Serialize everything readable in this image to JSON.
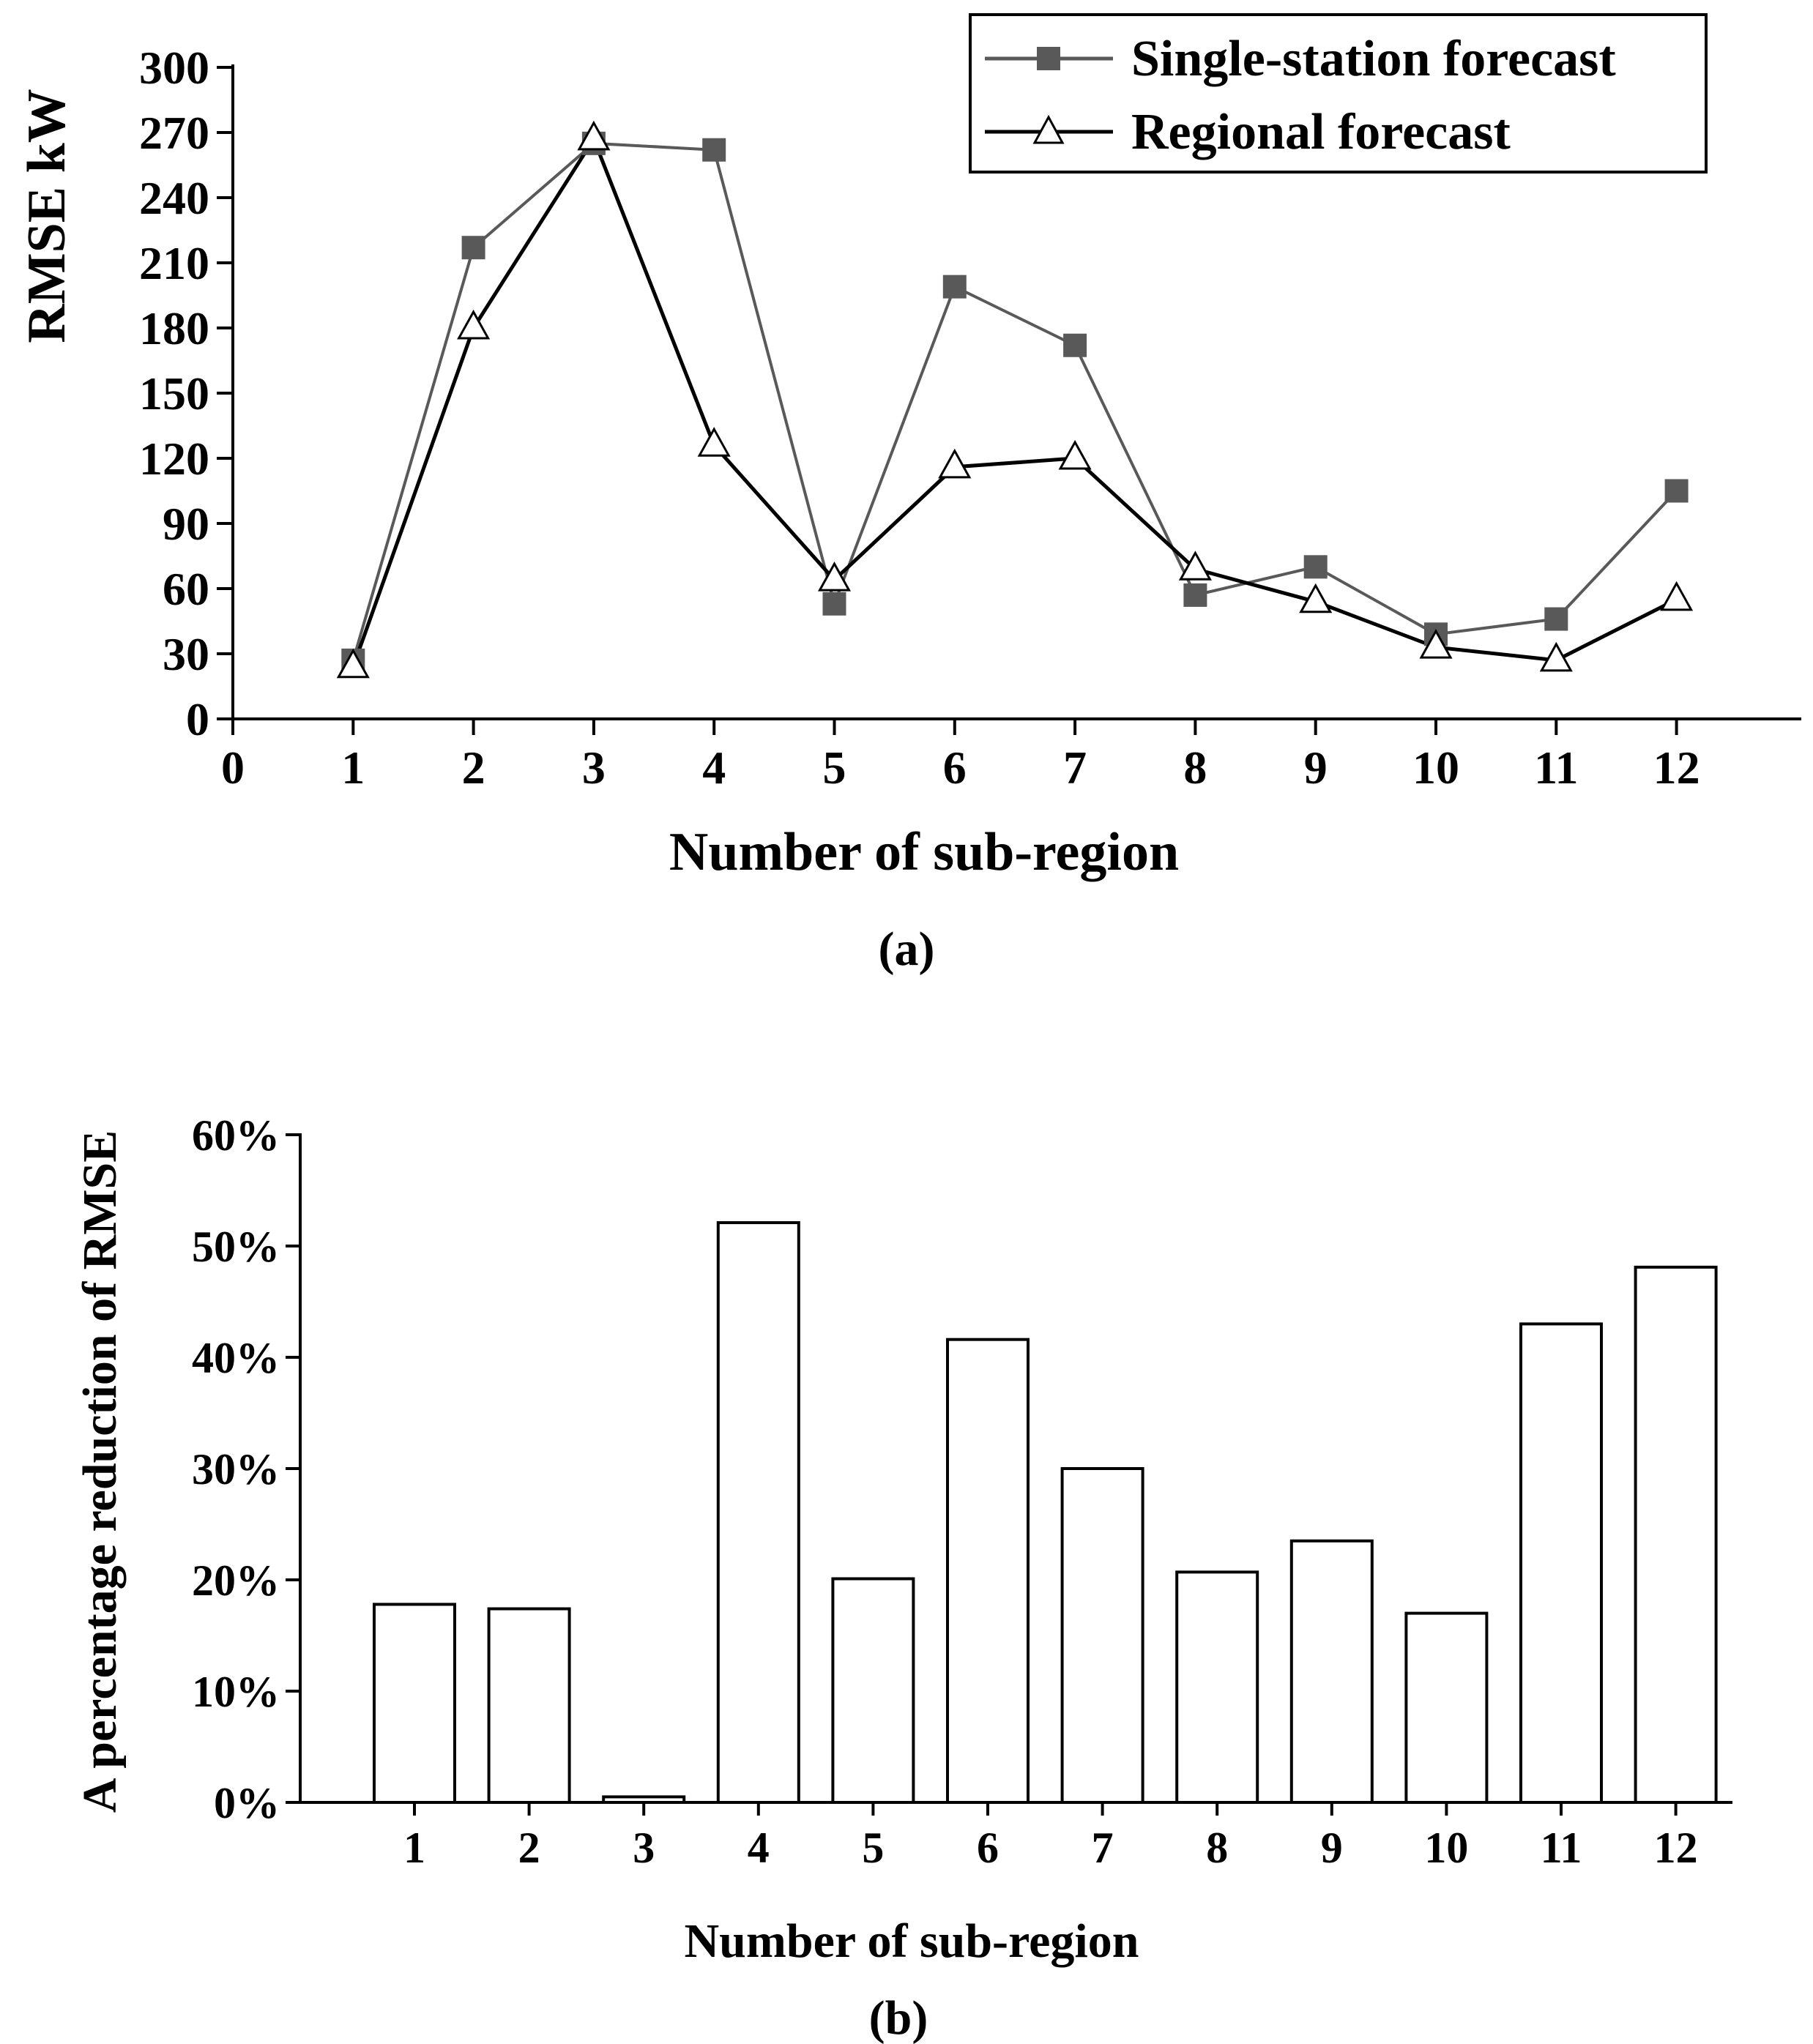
{
  "chart_data": [
    {
      "type": "line",
      "panel_label": "(a)",
      "xlabel": "Number of sub-region",
      "ylabel": "RMSE kW",
      "x": [
        1,
        2,
        3,
        4,
        5,
        6,
        7,
        8,
        9,
        10,
        11,
        12
      ],
      "x_ticks": [
        "0",
        "1",
        "2",
        "3",
        "4",
        "5",
        "6",
        "7",
        "8",
        "9",
        "10",
        "11",
        "12"
      ],
      "xlim": [
        0,
        13
      ],
      "ylim": [
        0,
        300
      ],
      "y_ticks": [
        "0",
        "30",
        "60",
        "90",
        "120",
        "150",
        "180",
        "210",
        "240",
        "270",
        "300"
      ],
      "legend_position": "top-right",
      "series": [
        {
          "name": "Single-station forecast",
          "marker": "filled-square",
          "color": "#595959",
          "values": [
            27,
            217,
            265,
            262,
            53,
            199,
            172,
            57,
            70,
            39,
            46,
            105
          ]
        },
        {
          "name": "Regional forecast",
          "marker": "open-triangle",
          "color": "#000000",
          "values": [
            24,
            180,
            267,
            126,
            64,
            116,
            120,
            69,
            54,
            33,
            27,
            55
          ]
        }
      ]
    },
    {
      "type": "bar",
      "panel_label": "(b)",
      "xlabel": "Number of sub-region",
      "ylabel": "A percentage reduction of RMSE",
      "categories": [
        "1",
        "2",
        "3",
        "4",
        "5",
        "6",
        "7",
        "8",
        "9",
        "10",
        "11",
        "12"
      ],
      "values": [
        17.8,
        17.4,
        0.5,
        52.1,
        20.1,
        41.6,
        30.0,
        20.7,
        23.5,
        17.0,
        43.0,
        48.1
      ],
      "ylim": [
        0,
        60
      ],
      "y_ticks": [
        "0%",
        "10%",
        "20%",
        "30%",
        "40%",
        "50%",
        "60%"
      ]
    }
  ]
}
